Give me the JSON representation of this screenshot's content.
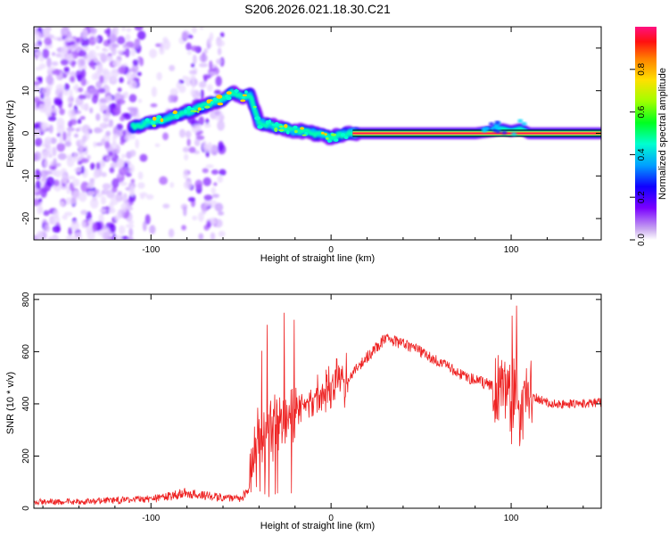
{
  "title": "S206.2026.021.18.30.C21",
  "chart_data": [
    {
      "type": "heatmap",
      "xlabel": "Height of straight line (km)",
      "ylabel": "Frequency (Hz)",
      "xlim": [
        -165,
        150
      ],
      "ylim": [
        -25,
        25
      ],
      "x_ticks": [
        -100,
        0,
        100
      ],
      "y_ticks": [
        -20,
        -10,
        0,
        10,
        20
      ],
      "colorbar": {
        "label": "Normalized spectral amplitude",
        "range": [
          0,
          1
        ],
        "ticks": [
          0.0,
          0.2,
          0.4,
          0.6,
          0.8
        ]
      },
      "ridge": {
        "x": [
          -110,
          -100,
          -90,
          -80,
          -70,
          -60,
          -55,
          -50,
          -45,
          -40,
          -35,
          -30,
          -25,
          -20,
          -15,
          -10,
          -5,
          0,
          5,
          10,
          20,
          40,
          60,
          80,
          90,
          95,
          100,
          105,
          110,
          130,
          150
        ],
        "y": [
          1.5,
          2.5,
          3.5,
          5.0,
          6.5,
          8.0,
          9.5,
          8.5,
          9.0,
          2.5,
          2.0,
          1.5,
          1.0,
          0.5,
          0.5,
          0.0,
          -0.5,
          -1.0,
          -0.5,
          0.0,
          0.0,
          0.0,
          0.0,
          0.0,
          0.5,
          1.0,
          0.5,
          1.0,
          0.0,
          0.0,
          0.0
        ]
      }
    },
    {
      "type": "line",
      "xlabel": "Height of straight line (km)",
      "ylabel": "SNR (10 * v/v)",
      "xlim": [
        -165,
        150
      ],
      "ylim": [
        0,
        820
      ],
      "x_ticks": [
        -100,
        0,
        100
      ],
      "y_ticks": [
        0,
        200,
        400,
        600,
        800
      ],
      "color": "#ee2222",
      "envelope": {
        "x": [
          -165,
          -140,
          -120,
          -100,
          -90,
          -80,
          -70,
          -60,
          -50,
          -45,
          -40,
          -35,
          -30,
          -25,
          -20,
          -15,
          -10,
          -5,
          0,
          10,
          20,
          30,
          40,
          50,
          60,
          70,
          80,
          90,
          95,
          100,
          103,
          105,
          108,
          110,
          115,
          120,
          130,
          140,
          150
        ],
        "y": [
          25,
          25,
          30,
          35,
          45,
          60,
          50,
          40,
          35,
          80,
          250,
          300,
          350,
          320,
          380,
          400,
          420,
          450,
          470,
          500,
          580,
          650,
          630,
          600,
          560,
          520,
          490,
          470,
          450,
          420,
          500,
          300,
          420,
          430,
          420,
          405,
          400,
          400,
          405
        ]
      }
    }
  ]
}
